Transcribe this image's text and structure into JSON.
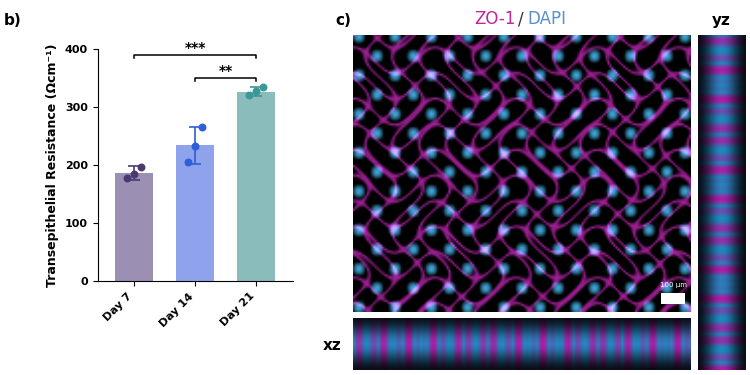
{
  "chart_data": {
    "type": "bar",
    "panel_label": "b)",
    "ylabel": "Transepithelial Resistance (Ωcm⁻¹)",
    "categories": [
      "Day 7",
      "Day 14",
      "Day 21"
    ],
    "values": [
      187,
      234,
      326
    ],
    "errors": [
      12,
      32,
      8
    ],
    "points": [
      [
        178,
        185,
        197
      ],
      [
        205,
        232,
        265
      ],
      [
        321,
        328,
        334
      ]
    ],
    "colors": [
      "#9b8fb3",
      "#8fa2ec",
      "#8bbcbc"
    ],
    "point_colors": [
      "#4b3a72",
      "#2d5fd8",
      "#3a9896"
    ],
    "ylim": [
      0,
      400
    ],
    "yticks": [
      0,
      100,
      200,
      300,
      400
    ],
    "significance": [
      {
        "from": "Day 7",
        "to": "Day 21",
        "text": "***"
      },
      {
        "from": "Day 14",
        "to": "Day 21",
        "text": "**"
      }
    ]
  },
  "image_panel": {
    "panel_label": "c)",
    "stains": [
      {
        "name": "ZO-1",
        "color": "#c0279e"
      },
      {
        "name": "DAPI",
        "color": "#5b8fc9"
      }
    ],
    "separator": "/",
    "scale_bar": "100 µm",
    "xz_label": "xz",
    "yz_label": "yz"
  }
}
